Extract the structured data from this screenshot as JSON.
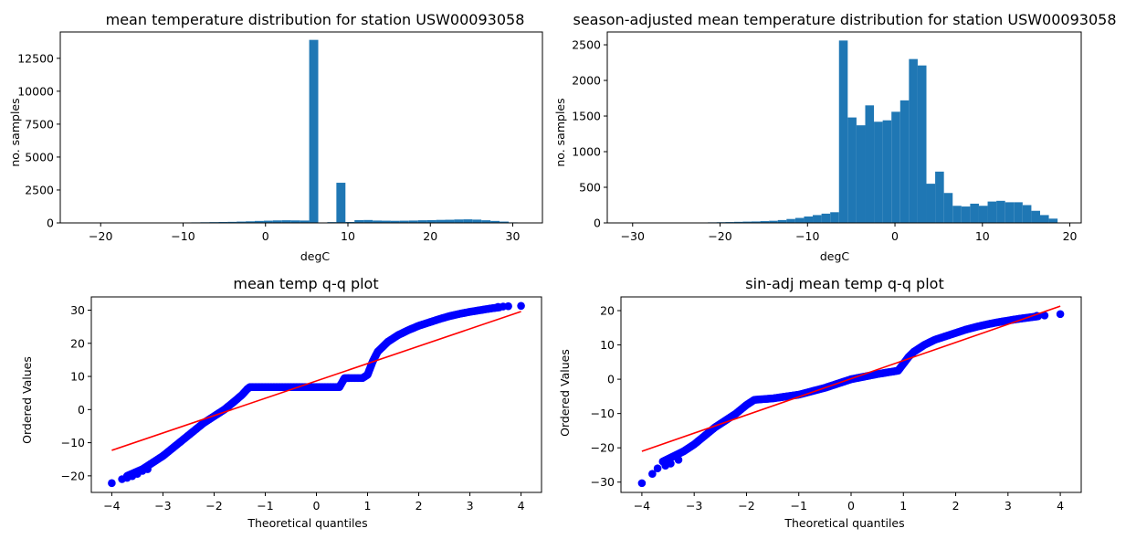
{
  "chart_data": [
    {
      "type": "bar",
      "title": "mean temperature distribution for station USW00093058",
      "xlabel": "degC",
      "ylabel": "no. samples",
      "xlim": [
        -24.9,
        33.6
      ],
      "ylim": [
        0,
        14500
      ],
      "xticks": [
        -20,
        -10,
        0,
        10,
        20,
        30
      ],
      "yticks": [
        0,
        2500,
        5000,
        7500,
        10000,
        12500
      ],
      "bin_edges": [
        -22.2,
        -21.1,
        -20.0,
        -18.9,
        -17.8,
        -16.7,
        -15.6,
        -14.5,
        -13.4,
        -12.3,
        -11.2,
        -10.1,
        -9.0,
        -7.9,
        -6.8,
        -5.7,
        -4.6,
        -3.5,
        -2.4,
        -1.3,
        -0.2,
        0.9,
        2.0,
        3.1,
        4.2,
        5.3,
        6.4,
        7.5,
        8.6,
        9.7,
        10.8,
        11.9,
        13.0,
        14.1,
        15.2,
        16.3,
        17.4,
        18.5,
        19.6,
        20.7,
        21.8,
        22.9,
        24.0,
        25.1,
        26.2,
        27.3,
        28.4,
        29.5,
        30.6
      ],
      "values": [
        1,
        0,
        0,
        1,
        2,
        3,
        5,
        8,
        12,
        18,
        25,
        30,
        40,
        50,
        60,
        70,
        80,
        100,
        120,
        150,
        170,
        190,
        200,
        190,
        180,
        13900,
        30,
        60,
        3050,
        70,
        210,
        220,
        180,
        170,
        160,
        170,
        180,
        200,
        210,
        230,
        240,
        260,
        270,
        250,
        200,
        150,
        100,
        40
      ]
    },
    {
      "type": "bar",
      "title": "season-adjusted mean temperature distribution for station USW00093058",
      "xlabel": "degC",
      "ylabel": "no. samples",
      "xlim": [
        -32.9,
        21.3
      ],
      "ylim": [
        0,
        2680
      ],
      "xticks": [
        -30,
        -20,
        -10,
        0,
        10,
        20
      ],
      "yticks": [
        0,
        500,
        1000,
        1500,
        2000,
        2500
      ],
      "bin_edges": [
        -30.4,
        -29.4,
        -28.4,
        -27.4,
        -26.4,
        -25.4,
        -24.4,
        -23.4,
        -22.4,
        -21.4,
        -20.4,
        -19.4,
        -18.4,
        -17.4,
        -16.4,
        -15.4,
        -14.4,
        -13.4,
        -12.4,
        -11.4,
        -10.4,
        -9.4,
        -8.4,
        -7.4,
        -6.4,
        -5.4,
        -4.4,
        -3.4,
        -2.4,
        -1.4,
        -0.4,
        0.6,
        1.6,
        2.6,
        3.6,
        4.6,
        5.6,
        6.6,
        7.6,
        8.6,
        9.6,
        10.6,
        11.6,
        12.6,
        13.6,
        14.6,
        15.6,
        16.6,
        17.6,
        18.6
      ],
      "values": [
        1,
        0,
        1,
        1,
        1,
        2,
        3,
        4,
        6,
        8,
        10,
        12,
        15,
        18,
        20,
        25,
        30,
        40,
        55,
        70,
        90,
        110,
        130,
        150,
        2560,
        1480,
        1370,
        1650,
        1420,
        1440,
        1560,
        1720,
        2300,
        2210,
        550,
        720,
        420,
        240,
        230,
        270,
        240,
        300,
        310,
        290,
        290,
        250,
        170,
        110,
        60,
        20
      ]
    },
    {
      "type": "scatter",
      "title": "mean temp q-q plot",
      "xlabel": "Theoretical quantiles",
      "ylabel": "Ordered Values",
      "xlim": [
        -4.4,
        4.4
      ],
      "ylim": [
        -25,
        34
      ],
      "xticks": [
        -4,
        -3,
        -2,
        -1,
        0,
        1,
        2,
        3,
        4
      ],
      "yticks": [
        -20,
        -10,
        0,
        10,
        20,
        30
      ],
      "point_color": "#0000ff",
      "fit_color": "#ff0000",
      "fit_line": {
        "x": [
          -4.0,
          4.0
        ],
        "y": [
          -12.3,
          29.6
        ]
      },
      "curve": {
        "x": [
          -3.7,
          -3.4,
          -3.2,
          -3.0,
          -2.8,
          -2.6,
          -2.4,
          -2.2,
          -2.0,
          -1.8,
          -1.6,
          -1.45,
          -1.35,
          -1.3,
          -1.0,
          -0.5,
          0.0,
          0.45,
          0.55,
          0.9,
          1.0,
          1.1,
          1.2,
          1.4,
          1.6,
          1.8,
          2.0,
          2.2,
          2.4,
          2.6,
          2.8,
          3.0,
          3.2,
          3.4,
          3.6
        ],
        "y": [
          -20.0,
          -18.0,
          -16.0,
          -14.0,
          -11.5,
          -9.0,
          -6.5,
          -4.0,
          -2.0,
          0.0,
          2.5,
          4.5,
          6.2,
          6.8,
          6.8,
          6.8,
          6.8,
          6.8,
          9.5,
          9.5,
          10.5,
          14.5,
          17.5,
          20.5,
          22.5,
          24.0,
          25.3,
          26.3,
          27.3,
          28.2,
          28.9,
          29.5,
          30.0,
          30.5,
          30.9
        ]
      },
      "points": [
        {
          "x": -4.0,
          "y": -22.2
        },
        {
          "x": -3.8,
          "y": -21.0
        },
        {
          "x": -3.7,
          "y": -20.6
        },
        {
          "x": -3.6,
          "y": -20.1
        },
        {
          "x": -3.5,
          "y": -19.4
        },
        {
          "x": -3.4,
          "y": -18.5
        },
        {
          "x": -3.3,
          "y": -18.0
        },
        {
          "x": 3.55,
          "y": 31.0
        },
        {
          "x": 3.65,
          "y": 31.1
        },
        {
          "x": 3.75,
          "y": 31.2
        },
        {
          "x": 4.0,
          "y": 31.3
        }
      ]
    },
    {
      "type": "scatter",
      "title": "sin-adj mean temp q-q plot",
      "xlabel": "Theoretical quantiles",
      "ylabel": "Ordered Values",
      "xlim": [
        -4.4,
        4.4
      ],
      "ylim": [
        -33,
        24
      ],
      "xticks": [
        -4,
        -3,
        -2,
        -1,
        0,
        1,
        2,
        3,
        4
      ],
      "yticks": [
        -30,
        -20,
        -10,
        0,
        10,
        20
      ],
      "point_color": "#0000ff",
      "fit_color": "#ff0000",
      "fit_line": {
        "x": [
          -4.0,
          4.0
        ],
        "y": [
          -21.0,
          21.3
        ]
      },
      "curve": {
        "x": [
          -3.6,
          -3.4,
          -3.2,
          -3.0,
          -2.8,
          -2.6,
          -2.4,
          -2.2,
          -2.0,
          -1.85,
          -1.5,
          -1.0,
          -0.5,
          0.0,
          0.5,
          0.9,
          1.0,
          1.1,
          1.2,
          1.4,
          1.6,
          1.8,
          2.0,
          2.2,
          2.4,
          2.6,
          2.8,
          3.0,
          3.2,
          3.4,
          3.6
        ],
        "y": [
          -24.0,
          -22.5,
          -21.0,
          -19.0,
          -16.5,
          -14.0,
          -12.0,
          -10.0,
          -7.5,
          -6.0,
          -5.6,
          -4.5,
          -2.5,
          0.0,
          1.5,
          2.5,
          4.5,
          6.5,
          8.0,
          10.0,
          11.5,
          12.5,
          13.5,
          14.5,
          15.3,
          16.0,
          16.6,
          17.1,
          17.6,
          18.0,
          18.4
        ]
      },
      "points": [
        {
          "x": -4.0,
          "y": -30.3
        },
        {
          "x": -3.8,
          "y": -27.6
        },
        {
          "x": -3.7,
          "y": -26.0
        },
        {
          "x": -3.55,
          "y": -25.2
        },
        {
          "x": -3.45,
          "y": -24.6
        },
        {
          "x": -3.3,
          "y": -23.5
        },
        {
          "x": 3.55,
          "y": 18.5
        },
        {
          "x": 3.7,
          "y": 18.6
        },
        {
          "x": 4.0,
          "y": 19.0
        }
      ]
    }
  ]
}
